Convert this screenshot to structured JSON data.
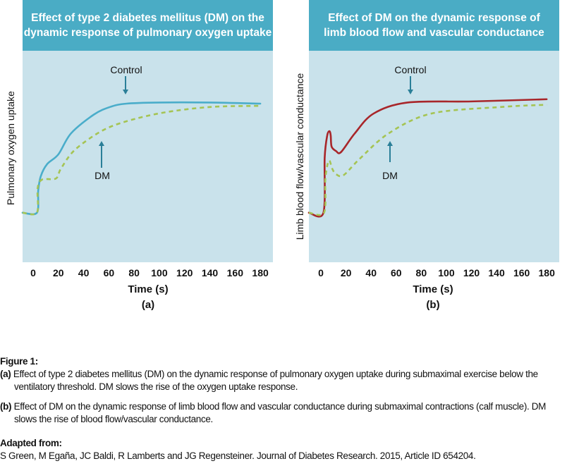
{
  "chart_data": [
    {
      "type": "line",
      "panel_label": "(a)",
      "title": "Effect of type 2 diabetes mellitus (DM) on the\ndynamic response of pulmonary oxygen uptake",
      "xlabel": "Time (s)",
      "ylabel": "Pulmonary oxygen uptake",
      "xticks": [
        0,
        20,
        40,
        60,
        80,
        100,
        120,
        140,
        160,
        180
      ],
      "xlim": [
        -8.4,
        190
      ],
      "ylim": [
        -0.45,
        1.47
      ],
      "grid": false,
      "background": "#c9e2eb",
      "header_color": "#4aacc5",
      "series": [
        {
          "name": "Control",
          "style": "solid",
          "color": "#4aadca",
          "x": [
            -8.4,
            3,
            4,
            6,
            11,
            20,
            30,
            48,
            61,
            74,
            100,
            140,
            180
          ],
          "y": [
            0,
            0,
            0.2,
            0.33,
            0.44,
            0.53,
            0.72,
            0.89,
            0.96,
            0.99,
            1.0,
            1.0,
            0.99
          ]
        },
        {
          "name": "DM",
          "style": "dashed",
          "color": "#a5c454",
          "x": [
            -8.4,
            3,
            3.5,
            7,
            18,
            22,
            33,
            54,
            74,
            104,
            141,
            180
          ],
          "y": [
            0,
            0,
            0.22,
            0.3,
            0.31,
            0.4,
            0.57,
            0.74,
            0.83,
            0.91,
            0.96,
            0.97
          ]
        }
      ],
      "annotations": [
        {
          "text": "Control",
          "series": "Control"
        },
        {
          "text": "DM",
          "series": "DM"
        }
      ]
    },
    {
      "type": "line",
      "panel_label": "(b)",
      "title": "Effect of DM on the dynamic response of\nlimb blood flow and vascular conductance",
      "xlabel": "Time (s)",
      "ylabel": "Limb blood flow/vascular conductance",
      "xticks": [
        0,
        20,
        40,
        60,
        80,
        100,
        120,
        140,
        160,
        180
      ],
      "xlim": [
        -9.6,
        190
      ],
      "ylim": [
        -0.45,
        1.47
      ],
      "grid": false,
      "background": "#c9e2eb",
      "header_color": "#4aacc5",
      "series": [
        {
          "name": "Control",
          "style": "solid",
          "color": "#a8262a",
          "x": [
            -9.6,
            2,
            3,
            5,
            6.8,
            7.8,
            8.5,
            12,
            16,
            27,
            42,
            69,
            120,
            180
          ],
          "y": [
            0,
            0,
            0.5,
            0.7,
            0.74,
            0.7,
            0.6,
            0.56,
            0.55,
            0.72,
            0.9,
            1.0,
            1.01,
            1.03
          ]
        },
        {
          "name": "DM",
          "style": "dashed",
          "color": "#a5c454",
          "x": [
            -9.6,
            2.5,
            3.5,
            5.5,
            7,
            9,
            12,
            18,
            31,
            54,
            88,
            144,
            180
          ],
          "y": [
            0,
            0,
            0.3,
            0.45,
            0.47,
            0.4,
            0.35,
            0.34,
            0.49,
            0.72,
            0.9,
            0.96,
            0.98
          ]
        }
      ],
      "annotations": [
        {
          "text": "Control",
          "series": "Control"
        },
        {
          "text": "DM",
          "series": "DM"
        }
      ]
    }
  ],
  "arrow_color": "#2a7f98",
  "caption": {
    "heading": "Figure 1:",
    "a_label": "(a)",
    "a_text": "Effect of type 2 diabetes mellitus (DM) on the dynamic response of pulmonary oxygen uptake during submaximal exercise below the ventilatory threshold. DM slows the rise of the oxygen uptake response.",
    "b_label": "(b)",
    "b_text": "Effect of DM on the dynamic response of limb blood flow and vascular conductance during submaximal contractions (calf muscle). DM slows the rise of blood flow/vascular conductance.",
    "source_heading": "Adapted from:",
    "source_text": "S Green, M Egaña, JC Baldi, R Lamberts and JG Regensteiner. Journal of Diabetes Research. 2015, Article ID 654204."
  }
}
